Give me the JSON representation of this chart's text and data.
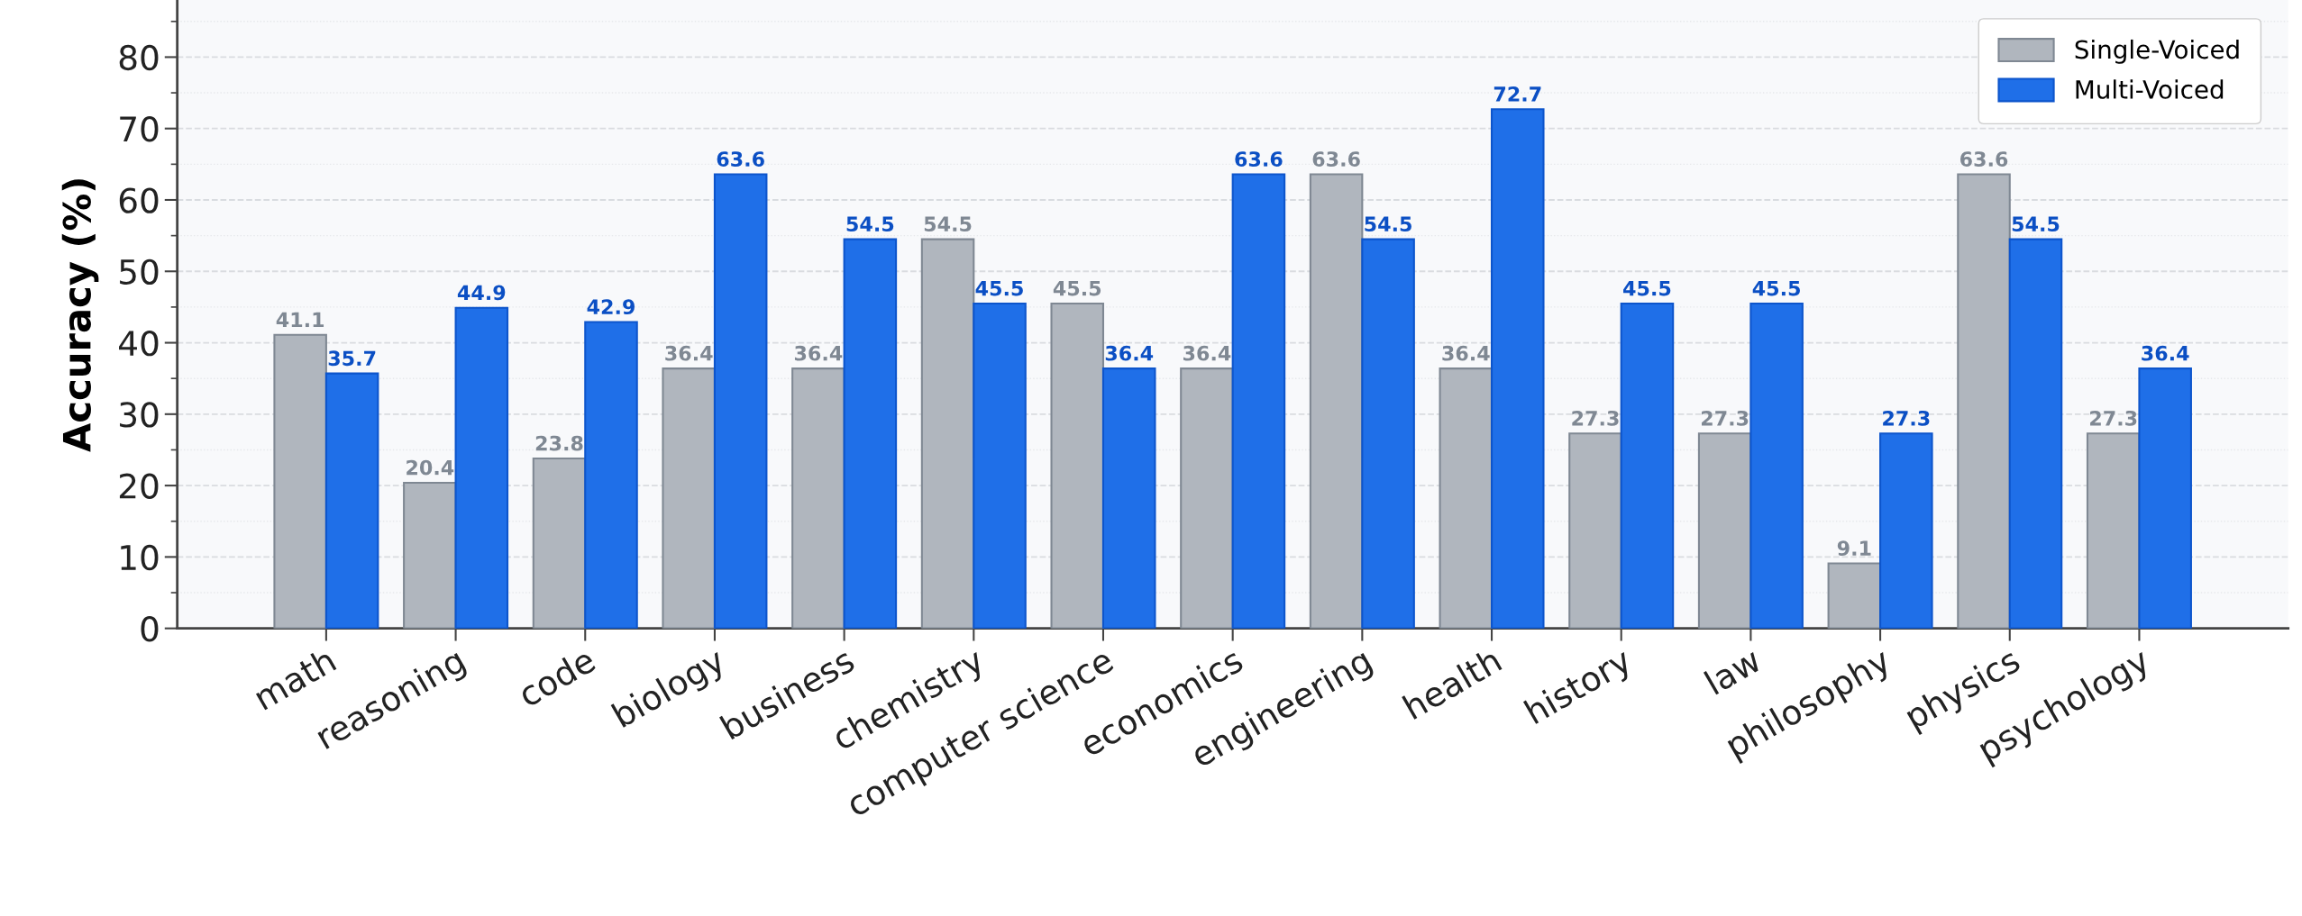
{
  "chart_data": {
    "type": "bar",
    "ylabel": "Accuracy (%)",
    "categories": [
      "math",
      "reasoning",
      "code",
      "biology",
      "business",
      "chemistry",
      "computer science",
      "economics",
      "engineering",
      "health",
      "history",
      "law",
      "philosophy",
      "physics",
      "psychology"
    ],
    "series": [
      {
        "name": "Single-Voiced",
        "color": "#b0b6be",
        "values": [
          41.1,
          20.4,
          23.8,
          36.4,
          36.4,
          54.5,
          45.5,
          36.4,
          63.6,
          36.4,
          27.3,
          27.3,
          9.1,
          63.6,
          27.3
        ]
      },
      {
        "name": "Multi-Voiced",
        "color": "#1f6fe8",
        "values": [
          35.7,
          44.9,
          42.9,
          63.6,
          54.5,
          45.5,
          36.4,
          63.6,
          54.5,
          72.7,
          45.5,
          45.5,
          27.3,
          54.5,
          36.4
        ]
      }
    ],
    "ylim": [
      0,
      88
    ],
    "yticks": [
      0,
      10,
      20,
      30,
      40,
      50,
      60,
      70,
      80
    ],
    "data_labels": true,
    "grid": "y",
    "legend": "top right"
  }
}
